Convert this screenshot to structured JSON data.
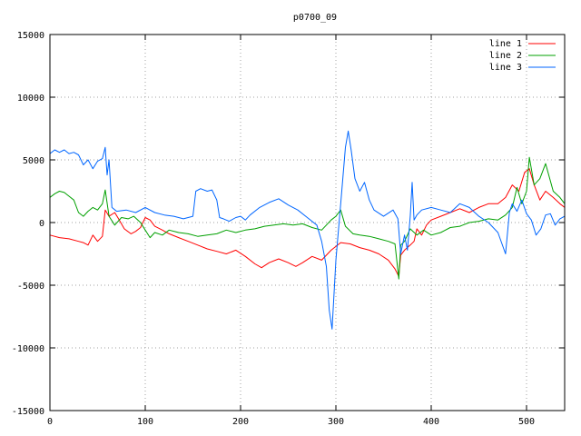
{
  "chart_data": {
    "type": "line",
    "title": "p0700_09",
    "xlabel": "",
    "ylabel": "",
    "xlim": [
      0,
      540
    ],
    "ylim": [
      -15000,
      15000
    ],
    "x_ticks": [
      0,
      100,
      200,
      300,
      400,
      500
    ],
    "y_ticks": [
      -15000,
      -10000,
      -5000,
      0,
      5000,
      10000,
      15000
    ],
    "grid": true,
    "legend_position": "top-right",
    "series": [
      {
        "name": "line 1",
        "color": "#ff0000",
        "x": [
          0,
          10,
          20,
          30,
          35,
          40,
          45,
          50,
          55,
          58,
          62,
          68,
          72,
          78,
          85,
          90,
          95,
          100,
          105,
          110,
          118,
          125,
          135,
          145,
          155,
          165,
          175,
          185,
          195,
          205,
          215,
          222,
          230,
          240,
          250,
          258,
          265,
          275,
          285,
          295,
          305,
          315,
          325,
          335,
          345,
          355,
          362,
          366,
          368,
          372,
          378,
          382,
          385,
          390,
          395,
          400,
          410,
          420,
          430,
          440,
          450,
          460,
          470,
          478,
          485,
          492,
          498,
          503,
          508,
          514,
          520,
          528,
          535,
          540
        ],
        "y": [
          -1000,
          -1200,
          -1300,
          -1500,
          -1600,
          -1800,
          -1000,
          -1500,
          -1100,
          1000,
          500,
          800,
          300,
          -500,
          -900,
          -700,
          -400,
          400,
          200,
          -300,
          -600,
          -900,
          -1200,
          -1500,
          -1800,
          -2100,
          -2300,
          -2500,
          -2200,
          -2700,
          -3300,
          -3600,
          -3200,
          -2900,
          -3200,
          -3500,
          -3200,
          -2700,
          -3000,
          -2200,
          -1600,
          -1700,
          -2000,
          -2200,
          -2500,
          -3000,
          -3700,
          -4300,
          -2600,
          -2200,
          -1800,
          -1500,
          -500,
          -1000,
          -200,
          200,
          500,
          800,
          1100,
          800,
          1200,
          1500,
          1500,
          2000,
          3000,
          2500,
          4000,
          4300,
          3000,
          1800,
          2500,
          2000,
          1500,
          1200
        ]
      },
      {
        "name": "line 2",
        "color": "#00a000",
        "x": [
          0,
          5,
          10,
          15,
          20,
          25,
          30,
          35,
          40,
          45,
          50,
          55,
          58,
          62,
          68,
          75,
          82,
          88,
          95,
          100,
          105,
          110,
          118,
          125,
          135,
          145,
          155,
          165,
          175,
          185,
          195,
          205,
          215,
          225,
          235,
          245,
          255,
          265,
          275,
          285,
          295,
          300,
          305,
          310,
          318,
          325,
          335,
          345,
          355,
          362,
          366,
          368,
          372,
          378,
          385,
          392,
          400,
          410,
          420,
          430,
          440,
          450,
          460,
          470,
          478,
          485,
          490,
          495,
          500,
          503,
          508,
          514,
          520,
          528,
          535,
          540
        ],
        "y": [
          2000,
          2300,
          2500,
          2400,
          2100,
          1800,
          800,
          500,
          900,
          1200,
          1000,
          1500,
          2600,
          500,
          -200,
          400,
          300,
          500,
          0,
          -600,
          -1200,
          -800,
          -1000,
          -600,
          -800,
          -900,
          -1100,
          -1000,
          -900,
          -600,
          -800,
          -600,
          -500,
          -300,
          -200,
          -100,
          -200,
          -100,
          -400,
          -600,
          200,
          500,
          1000,
          -300,
          -900,
          -1000,
          -1100,
          -1300,
          -1500,
          -1700,
          -4500,
          -1800,
          -1500,
          -500,
          -1000,
          -600,
          -1000,
          -800,
          -400,
          -300,
          0,
          100,
          300,
          200,
          600,
          1200,
          2800,
          1500,
          2500,
          5200,
          3000,
          3500,
          4700,
          2500,
          2000,
          1500
        ]
      },
      {
        "name": "line 3",
        "color": "#0066ff",
        "x": [
          0,
          5,
          10,
          15,
          20,
          25,
          30,
          35,
          40,
          45,
          50,
          55,
          58,
          60,
          62,
          65,
          70,
          80,
          90,
          100,
          110,
          120,
          130,
          140,
          150,
          153,
          158,
          165,
          170,
          175,
          178,
          182,
          188,
          195,
          200,
          205,
          210,
          220,
          230,
          240,
          250,
          260,
          270,
          280,
          285,
          290,
          293,
          296,
          300,
          305,
          310,
          313,
          316,
          320,
          325,
          330,
          335,
          340,
          350,
          360,
          365,
          368,
          372,
          375,
          378,
          380,
          382,
          385,
          390,
          400,
          410,
          420,
          430,
          440,
          450,
          460,
          470,
          478,
          482,
          485,
          490,
          495,
          500,
          505,
          510,
          515,
          520,
          525,
          530,
          535,
          540
        ],
        "y": [
          5500,
          5800,
          5600,
          5800,
          5500,
          5600,
          5400,
          4600,
          5000,
          4300,
          4900,
          5100,
          6000,
          3800,
          5000,
          1200,
          900,
          1000,
          800,
          1200,
          800,
          600,
          500,
          300,
          500,
          2500,
          2700,
          2500,
          2600,
          1800,
          400,
          300,
          100,
          400,
          500,
          200,
          600,
          1200,
          1600,
          1900,
          1400,
          1000,
          400,
          -200,
          -1500,
          -3500,
          -7000,
          -8500,
          -3000,
          1500,
          6000,
          7300,
          5800,
          3500,
          2500,
          3200,
          1800,
          1000,
          500,
          1000,
          300,
          -2500,
          -1000,
          -2200,
          500,
          3200,
          200,
          600,
          1000,
          1200,
          1000,
          800,
          1500,
          1200,
          500,
          0,
          -800,
          -2500,
          800,
          1500,
          900,
          1800,
          700,
          200,
          -1000,
          -500,
          600,
          700,
          -200,
          300,
          500
        ]
      }
    ]
  }
}
